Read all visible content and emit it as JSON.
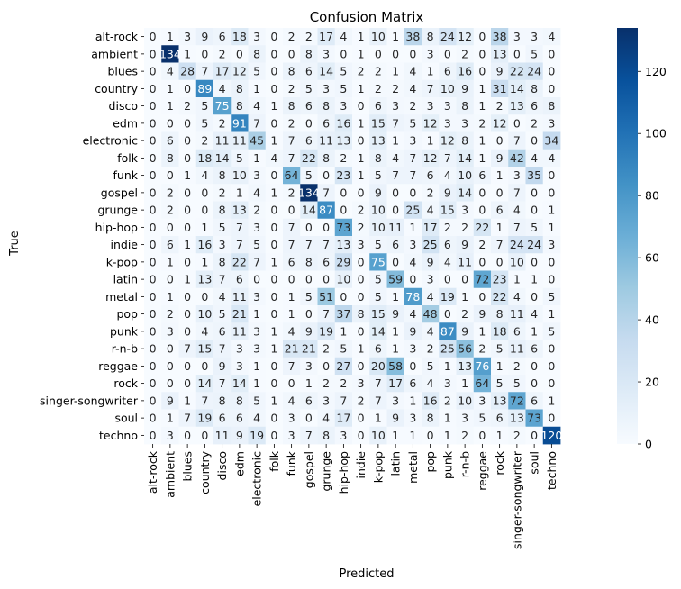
{
  "chart_data": {
    "type": "heatmap",
    "title": "Confusion Matrix",
    "xlabel": "Predicted",
    "ylabel": "True",
    "labels": [
      "alt-rock",
      "ambient",
      "blues",
      "country",
      "disco",
      "edm",
      "electronic",
      "folk",
      "funk",
      "gospel",
      "grunge",
      "hip-hop",
      "indie",
      "k-pop",
      "latin",
      "metal",
      "pop",
      "punk",
      "r-n-b",
      "reggae",
      "rock",
      "singer-songwriter",
      "soul",
      "techno"
    ],
    "matrix": [
      [
        0,
        1,
        3,
        9,
        6,
        18,
        3,
        0,
        2,
        2,
        17,
        4,
        1,
        10,
        1,
        38,
        8,
        24,
        12,
        0,
        38,
        3,
        3,
        4
      ],
      [
        0,
        134,
        1,
        0,
        2,
        0,
        8,
        0,
        0,
        8,
        3,
        0,
        1,
        0,
        0,
        0,
        3,
        0,
        2,
        0,
        13,
        0,
        5,
        0
      ],
      [
        0,
        4,
        28,
        7,
        17,
        12,
        5,
        0,
        8,
        6,
        14,
        5,
        2,
        2,
        1,
        4,
        1,
        6,
        16,
        0,
        9,
        22,
        24,
        0
      ],
      [
        0,
        1,
        0,
        89,
        4,
        8,
        1,
        0,
        2,
        5,
        3,
        5,
        1,
        2,
        2,
        4,
        7,
        10,
        9,
        1,
        31,
        14,
        8,
        0
      ],
      [
        0,
        1,
        2,
        5,
        75,
        8,
        4,
        1,
        8,
        6,
        8,
        3,
        0,
        6,
        3,
        2,
        3,
        3,
        8,
        1,
        2,
        13,
        6,
        8
      ],
      [
        0,
        0,
        0,
        5,
        2,
        91,
        7,
        0,
        2,
        0,
        6,
        16,
        1,
        15,
        7,
        5,
        12,
        3,
        3,
        2,
        12,
        0,
        2,
        3
      ],
      [
        0,
        6,
        0,
        2,
        11,
        11,
        45,
        1,
        7,
        6,
        11,
        13,
        0,
        13,
        1,
        3,
        1,
        12,
        8,
        1,
        0,
        7,
        0,
        34
      ],
      [
        0,
        8,
        0,
        18,
        14,
        5,
        1,
        4,
        7,
        22,
        8,
        2,
        1,
        8,
        4,
        7,
        12,
        7,
        14,
        1,
        9,
        42,
        4,
        4
      ],
      [
        0,
        0,
        1,
        4,
        8,
        10,
        3,
        0,
        64,
        5,
        0,
        23,
        1,
        5,
        7,
        7,
        6,
        4,
        10,
        6,
        1,
        3,
        35,
        0
      ],
      [
        0,
        2,
        0,
        0,
        2,
        1,
        4,
        1,
        2,
        134,
        7,
        0,
        0,
        9,
        0,
        0,
        2,
        9,
        14,
        0,
        0,
        7,
        0,
        0
      ],
      [
        0,
        2,
        0,
        0,
        8,
        13,
        2,
        0,
        0,
        14,
        87,
        0,
        2,
        10,
        0,
        25,
        4,
        15,
        3,
        0,
        6,
        4,
        0,
        1
      ],
      [
        0,
        0,
        0,
        1,
        5,
        7,
        3,
        0,
        7,
        0,
        0,
        73,
        2,
        10,
        11,
        1,
        17,
        2,
        2,
        22,
        1,
        7,
        5,
        1
      ],
      [
        0,
        6,
        1,
        16,
        3,
        7,
        5,
        0,
        7,
        7,
        7,
        13,
        3,
        5,
        6,
        3,
        25,
        6,
        9,
        2,
        7,
        24,
        24,
        3
      ],
      [
        0,
        1,
        0,
        1,
        8,
        22,
        7,
        1,
        6,
        8,
        6,
        29,
        0,
        75,
        0,
        4,
        9,
        4,
        11,
        0,
        0,
        10,
        0,
        0
      ],
      [
        0,
        0,
        1,
        13,
        7,
        6,
        0,
        0,
        0,
        0,
        0,
        10,
        0,
        5,
        59,
        0,
        3,
        0,
        0,
        72,
        23,
        1,
        1,
        0
      ],
      [
        0,
        1,
        0,
        0,
        4,
        11,
        3,
        0,
        1,
        5,
        51,
        0,
        0,
        5,
        1,
        78,
        4,
        19,
        1,
        0,
        22,
        4,
        0,
        5
      ],
      [
        0,
        2,
        0,
        10,
        5,
        21,
        1,
        0,
        1,
        0,
        7,
        37,
        8,
        15,
        9,
        4,
        48,
        0,
        2,
        9,
        8,
        11,
        4,
        1
      ],
      [
        0,
        3,
        0,
        4,
        6,
        11,
        3,
        1,
        4,
        9,
        19,
        1,
        0,
        14,
        1,
        9,
        4,
        87,
        9,
        1,
        18,
        6,
        1,
        5
      ],
      [
        0,
        0,
        7,
        15,
        7,
        3,
        3,
        1,
        21,
        21,
        2,
        5,
        1,
        6,
        1,
        3,
        2,
        25,
        56,
        2,
        5,
        11,
        6,
        0
      ],
      [
        0,
        0,
        0,
        0,
        9,
        3,
        1,
        0,
        7,
        3,
        0,
        27,
        0,
        20,
        58,
        0,
        5,
        1,
        13,
        76,
        1,
        2,
        0,
        0
      ],
      [
        0,
        0,
        0,
        14,
        7,
        14,
        1,
        0,
        0,
        1,
        2,
        2,
        3,
        7,
        17,
        6,
        4,
        3,
        1,
        64,
        5,
        5,
        0,
        0
      ],
      [
        0,
        9,
        1,
        7,
        8,
        8,
        5,
        1,
        4,
        6,
        3,
        7,
        2,
        7,
        3,
        1,
        16,
        2,
        10,
        3,
        13,
        72,
        6,
        1
      ],
      [
        0,
        1,
        7,
        19,
        6,
        6,
        4,
        0,
        3,
        0,
        4,
        17,
        0,
        1,
        9,
        3,
        8,
        1,
        3,
        5,
        6,
        13,
        73,
        0
      ],
      [
        0,
        3,
        0,
        0,
        11,
        9,
        19,
        0,
        3,
        7,
        8,
        3,
        0,
        10,
        1,
        1,
        0,
        1,
        2,
        0,
        1,
        2,
        0,
        120
      ]
    ],
    "vmin": 0,
    "vmax": 134,
    "colorbar_ticks": [
      0,
      20,
      40,
      60,
      80,
      100,
      120
    ],
    "colormap": "Blues",
    "colors": {
      "low": "#f7fbff",
      "high": "#08306b",
      "text_dark": "#262626",
      "text_light": "#ffffff"
    }
  }
}
